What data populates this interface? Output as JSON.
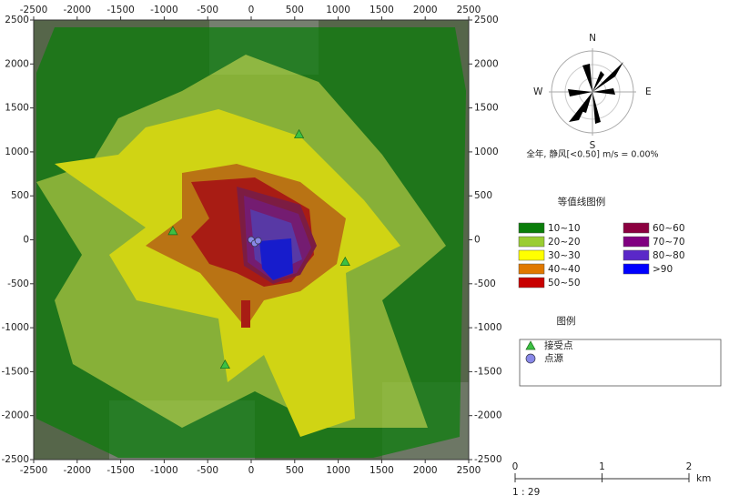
{
  "map": {
    "xlim": [
      -2500,
      2500
    ],
    "ylim": [
      -2500,
      2500
    ],
    "xticks": [
      -2500,
      -2000,
      -1500,
      -1000,
      -500,
      0,
      500,
      1000,
      1500,
      2000,
      2500
    ],
    "yticks": [
      -2500,
      -2000,
      -1500,
      -1000,
      -500,
      0,
      500,
      1000,
      1500,
      2000,
      2500
    ],
    "receptors": [
      {
        "x": 550,
        "y": 1200
      },
      {
        "x": -900,
        "y": 100
      },
      {
        "x": 1080,
        "y": -250
      },
      {
        "x": -300,
        "y": -1420
      }
    ],
    "sources": [
      {
        "x": 0,
        "y": 0
      },
      {
        "x": 40,
        "y": -40
      },
      {
        "x": 80,
        "y": -10
      }
    ]
  },
  "wind_rose": {
    "directions": [
      "N",
      "E",
      "S",
      "W"
    ],
    "caption": "全年, 静风[<0.50] m/s = 0.00%"
  },
  "contour_legend": {
    "title": "等值线图例",
    "items": [
      {
        "label": "10~10",
        "color": "#0a7d0a"
      },
      {
        "label": "20~20",
        "color": "#9acd32"
      },
      {
        "label": "30~30",
        "color": "#ffff00"
      },
      {
        "label": "40~40",
        "color": "#e07800"
      },
      {
        "label": "50~50",
        "color": "#c80000"
      },
      {
        "label": "60~60",
        "color": "#8b0040"
      },
      {
        "label": "70~70",
        "color": "#800080"
      },
      {
        "label": "80~80",
        "color": "#5a28c8"
      },
      {
        "label": ">90",
        "color": "#0000ff"
      }
    ]
  },
  "legend": {
    "title": "图例",
    "items": [
      {
        "label": "接受点",
        "color": "#3cc043"
      },
      {
        "label": "点源",
        "color": "#8888e8"
      }
    ]
  },
  "scale_bar": {
    "ticks": [
      0,
      1,
      2
    ],
    "unit": "km",
    "ratio": "1 : 29"
  }
}
